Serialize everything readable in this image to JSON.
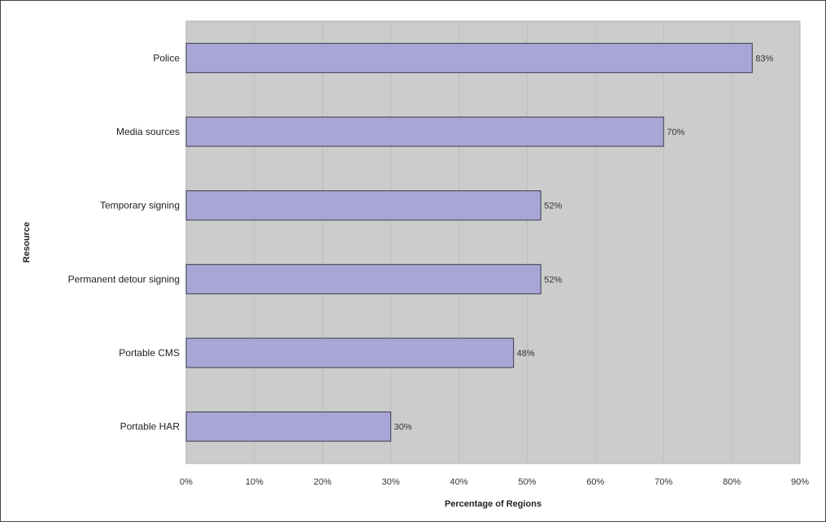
{
  "chart_data": {
    "type": "bar",
    "orientation": "horizontal",
    "categories": [
      "Police",
      "Media sources",
      "Temporary signing",
      "Permanent detour signing",
      "Portable CMS",
      "Portable HAR"
    ],
    "values": [
      83,
      70,
      52,
      52,
      48,
      30
    ],
    "data_labels": [
      "83%",
      "70%",
      "52%",
      "52%",
      "48%",
      "30%"
    ],
    "xlabel": "Percentage of Regions",
    "ylabel": "Resource",
    "xlim": [
      0,
      90
    ],
    "xticks": [
      0,
      10,
      20,
      30,
      40,
      50,
      60,
      70,
      80,
      90
    ],
    "xtick_labels": [
      "0%",
      "10%",
      "20%",
      "30%",
      "40%",
      "50%",
      "60%",
      "70%",
      "80%",
      "90%"
    ],
    "grid": true,
    "colors": {
      "plot_background": "#cccccc",
      "bar_fill": "#a8a6d6",
      "bar_stroke": "#3a3a4a",
      "gridline": "#bdbdbd"
    }
  }
}
